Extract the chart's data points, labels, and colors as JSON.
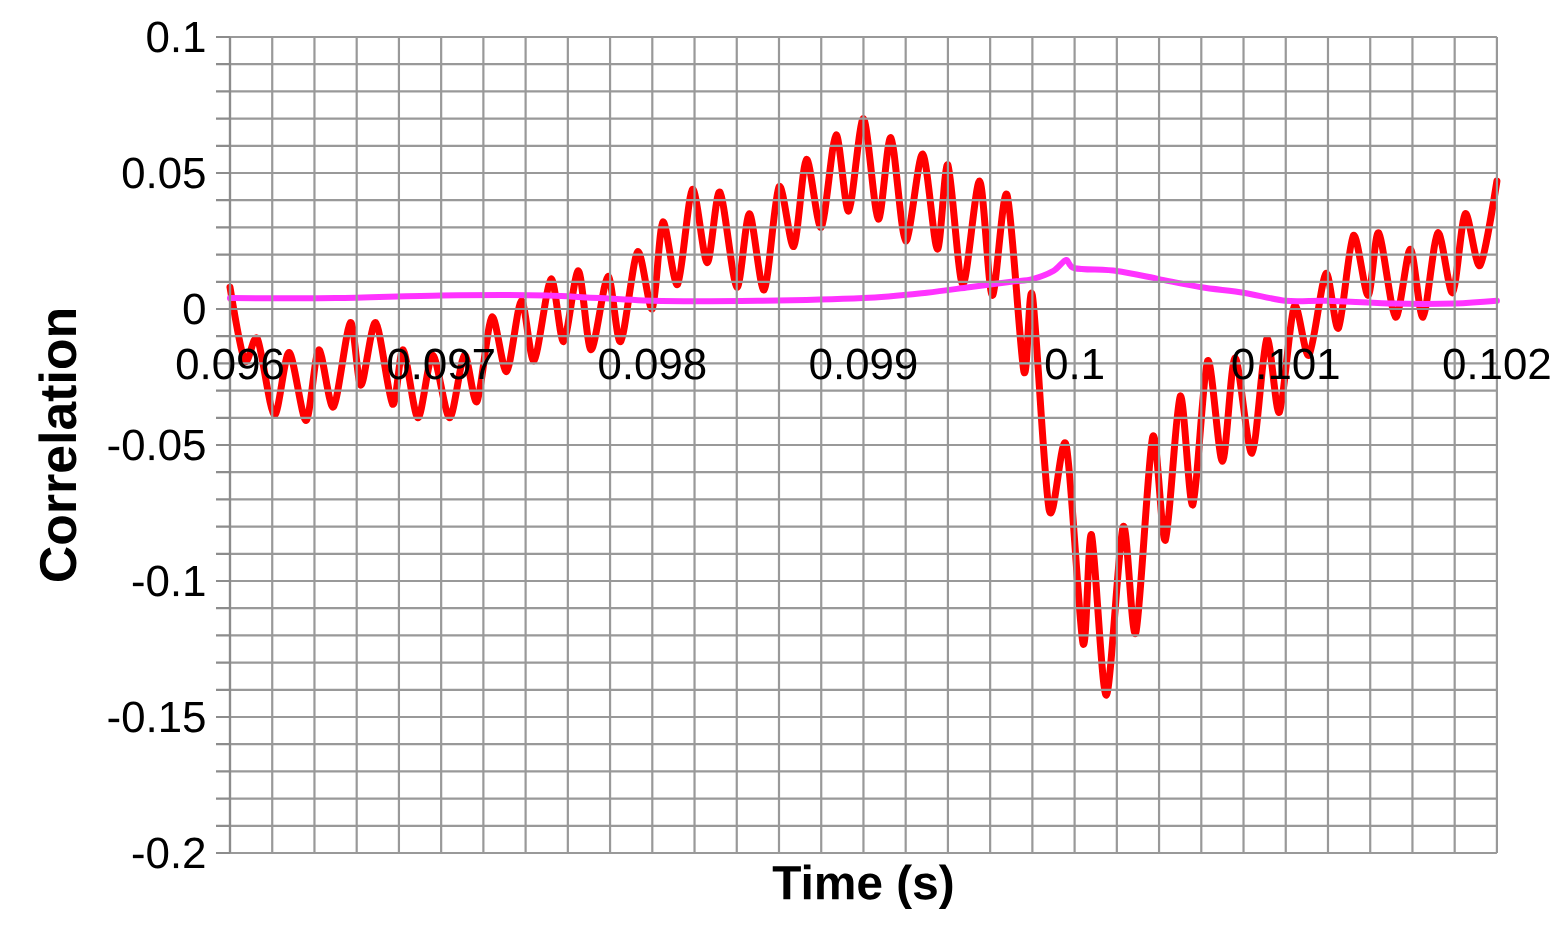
{
  "chart_data": {
    "type": "line",
    "xlabel": "Time (s)",
    "ylabel": "Correlation",
    "xlim": [
      0.096,
      0.102
    ],
    "ylim": [
      -0.2,
      0.1
    ],
    "xticks": [
      0.096,
      0.097,
      0.098,
      0.099,
      0.1,
      0.101,
      0.102
    ],
    "yticks": [
      -0.2,
      -0.15,
      -0.1,
      -0.05,
      0,
      0.05,
      0.1
    ],
    "grid": true,
    "marker": "none",
    "line_style": "solid",
    "series": [
      {
        "color": "#ff0000",
        "x": [
          0.096,
          0.09607,
          0.09613,
          0.09621,
          0.09628,
          0.09636,
          0.09642,
          0.09649,
          0.09657,
          0.09662,
          0.09669,
          0.09677,
          0.09682,
          0.09689,
          0.09696,
          0.09704,
          0.09711,
          0.09717,
          0.09724,
          0.09731,
          0.09738,
          0.09744,
          0.09752,
          0.09758,
          0.09765,
          0.09771,
          0.09779,
          0.09785,
          0.09793,
          0.098,
          0.09805,
          0.09812,
          0.09819,
          0.09826,
          0.09832,
          0.0984,
          0.09846,
          0.09853,
          0.0986,
          0.09867,
          0.09873,
          0.0988,
          0.09887,
          0.09893,
          0.099,
          0.09907,
          0.09913,
          0.0992,
          0.09928,
          0.09935,
          0.0994,
          0.09947,
          0.09955,
          0.09961,
          0.09968,
          0.09976,
          0.0998,
          0.09988,
          0.09996,
          0.10004,
          0.10008,
          0.10015,
          0.10023,
          0.10029,
          0.10037,
          0.10043,
          0.1005,
          0.10056,
          0.10063,
          0.1007,
          0.10076,
          0.10084,
          0.10091,
          0.10097,
          0.10104,
          0.10111,
          0.10119,
          0.10125,
          0.10132,
          0.10139,
          0.10144,
          0.10152,
          0.10159,
          0.10165,
          0.10172,
          0.10179,
          0.10185,
          0.10192,
          0.102
        ],
        "values": [
          0.008,
          -0.019,
          -0.011,
          -0.039,
          -0.016,
          -0.041,
          -0.015,
          -0.036,
          -0.005,
          -0.028,
          -0.005,
          -0.035,
          -0.015,
          -0.04,
          -0.017,
          -0.04,
          -0.017,
          -0.034,
          -0.003,
          -0.023,
          0.003,
          -0.019,
          0.011,
          -0.012,
          0.014,
          -0.015,
          0.012,
          -0.012,
          0.021,
          0.0,
          0.032,
          0.009,
          0.044,
          0.017,
          0.043,
          0.008,
          0.035,
          0.007,
          0.045,
          0.023,
          0.055,
          0.03,
          0.064,
          0.036,
          0.07,
          0.033,
          0.063,
          0.025,
          0.057,
          0.022,
          0.053,
          0.009,
          0.047,
          0.005,
          0.042,
          -0.023,
          0.005,
          -0.074,
          -0.05,
          -0.123,
          -0.083,
          -0.142,
          -0.08,
          -0.119,
          -0.047,
          -0.085,
          -0.032,
          -0.072,
          -0.019,
          -0.056,
          -0.018,
          -0.053,
          -0.011,
          -0.038,
          0.001,
          -0.017,
          0.013,
          -0.007,
          0.027,
          0.005,
          0.028,
          -0.003,
          0.022,
          -0.003,
          0.028,
          0.006,
          0.035,
          0.016,
          0.047
        ]
      },
      {
        "color": "#ff33ff",
        "x": [
          0.096,
          0.0965,
          0.097,
          0.0975,
          0.098,
          0.0985,
          0.099,
          0.0993,
          0.0995,
          0.0997,
          0.0998,
          0.0999,
          0.09996,
          0.1,
          0.1002,
          0.1004,
          0.1006,
          0.1008,
          0.101,
          0.1012,
          0.1015,
          0.1018,
          0.102
        ],
        "values": [
          0.004,
          0.004,
          0.005,
          0.005,
          0.003,
          0.003,
          0.004,
          0.006,
          0.008,
          0.01,
          0.011,
          0.014,
          0.018,
          0.015,
          0.014,
          0.011,
          0.008,
          0.006,
          0.003,
          0.003,
          0.002,
          0.002,
          0.003
        ]
      }
    ]
  }
}
